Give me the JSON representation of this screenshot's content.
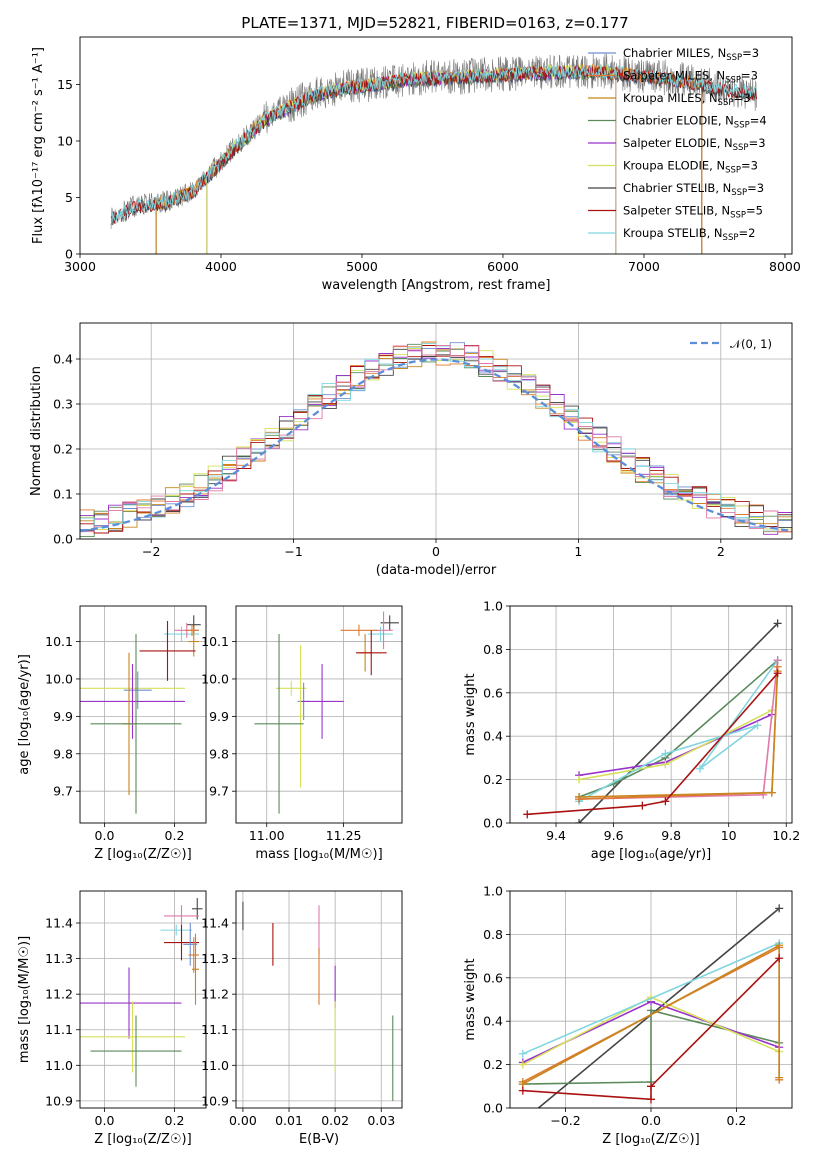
{
  "title": "PLATE=1371, MJD=52821, FIBERID=0163, z=0.177",
  "colors": {
    "chabrier_miles": "#6f8fcf",
    "salpeter_miles": "#e07a2e",
    "kroupa_miles": "#c8861e",
    "chabrier_elodie": "#5a8a5a",
    "salpeter_elodie": "#9933cc",
    "kroupa_elodie": "#d6e05a",
    "chabrier_stelib": "#444444",
    "salpeter_stelib": "#aa1111",
    "kroupa_stelib": "#7fd6e0",
    "salpeter_stelib_pink": "#e07aa8",
    "gaussian": "#5b8fd9"
  },
  "chart_data": [
    {
      "type": "line",
      "id": "spectrum",
      "xlabel": "wavelength [Angstrom, rest frame]",
      "ylabel": "Flux [fλ10⁻¹⁷ erg cm⁻² s⁻¹ A⁻¹]",
      "xlim": [
        3000,
        8050
      ],
      "ylim": [
        0,
        19.2
      ],
      "xticks": [
        3000,
        4000,
        5000,
        6000,
        7000,
        8000
      ],
      "yticks": [
        0,
        5,
        10,
        15
      ],
      "data_range": [
        3220,
        7800
      ],
      "continuum": {
        "x": [
          3220,
          3400,
          3600,
          3800,
          3950,
          4100,
          4300,
          4500,
          4700,
          4900,
          5100,
          5300,
          5500,
          5700,
          5900,
          6100,
          6300,
          6500,
          6700,
          6900,
          7100,
          7300,
          7500,
          7800
        ],
        "y": [
          3.2,
          4.3,
          4.6,
          5.6,
          7.5,
          9.5,
          11.8,
          13.2,
          14.3,
          14.8,
          15.1,
          15.5,
          15.6,
          15.7,
          15.9,
          16.0,
          16.1,
          16.2,
          16.2,
          15.9,
          15.7,
          15.3,
          14.8,
          14.2
        ]
      },
      "legend": [
        {
          "label": "Chabrier MILES, N",
          "n": "3",
          "color": "chabrier_miles"
        },
        {
          "label": "Salpeter MILES, N",
          "n": "3",
          "color": "salpeter_miles"
        },
        {
          "label": "Kroupa MILES, N",
          "n": "3",
          "color": "kroupa_miles"
        },
        {
          "label": "Chabrier ELODIE, N",
          "n": "4",
          "color": "chabrier_elodie"
        },
        {
          "label": "Salpeter ELODIE, N",
          "n": "3",
          "color": "salpeter_elodie"
        },
        {
          "label": "Kroupa ELODIE, N",
          "n": "3",
          "color": "kroupa_elodie"
        },
        {
          "label": "Chabrier STELIB, N",
          "n": "3",
          "color": "chabrier_stelib"
        },
        {
          "label": "Salpeter STELIB, N",
          "n": "5",
          "color": "salpeter_stelib"
        },
        {
          "label": "Kroupa STELIB, N",
          "n": "2",
          "color": "kroupa_stelib"
        }
      ],
      "legend_sub": "SSP",
      "legend_position": "right"
    },
    {
      "type": "histogram",
      "id": "residuals",
      "xlabel": "(data-model)/error",
      "ylabel": "Normed distribution",
      "xlim": [
        -2.5,
        2.5
      ],
      "ylim": [
        0,
        0.48
      ],
      "xticks": [
        -2,
        -1,
        0,
        1,
        2
      ],
      "yticks": [
        0.0,
        0.1,
        0.2,
        0.3,
        0.4
      ],
      "grid": true,
      "bin_width": 0.1,
      "gaussian_label": "𝒩(0, 1)",
      "legend_position": "top-right"
    },
    {
      "type": "scatter",
      "id": "age_vs_Z",
      "xlabel": "Z [log₁₀(Z/Z☉)]",
      "ylabel": "age  [log₁₀(age/yr)]",
      "xlim": [
        -0.07,
        0.29
      ],
      "ylim": [
        9.615,
        10.195
      ],
      "xticks": [
        0.0,
        0.2
      ],
      "yticks": [
        9.7,
        9.8,
        9.9,
        10.0,
        10.1
      ],
      "grid": true,
      "points": [
        {
          "c": "chabrier_stelib",
          "x": 0.255,
          "xe": 0.02,
          "y": 10.145,
          "ye": 0.025
        },
        {
          "c": "kroupa_stelib",
          "x": 0.22,
          "xe": 0.05,
          "y": 10.12,
          "ye": 0.02
        },
        {
          "c": "salpeter_stelib_pink",
          "x": 0.235,
          "xe": 0.035,
          "y": 10.13,
          "ye": 0.02
        },
        {
          "c": "salpeter_miles",
          "x": 0.25,
          "xe": 0.02,
          "y": 10.13,
          "ye": 0.015
        },
        {
          "c": "kroupa_miles",
          "x": 0.255,
          "xe": 0.015,
          "y": 10.1,
          "ye": 0.04
        },
        {
          "c": "salpeter_stelib",
          "x": 0.18,
          "xe": 0.08,
          "y": 10.075,
          "ye": 0.08
        },
        {
          "c": "kroupa_elodie",
          "x": 0.08,
          "xe": 0.15,
          "y": 9.975,
          "ye": 0.02
        },
        {
          "c": "chabrier_miles",
          "x": 0.095,
          "xe": 0.04,
          "y": 9.97,
          "ye": 0.05
        },
        {
          "c": "salpeter_elodie",
          "x": 0.08,
          "xe": 0.15,
          "y": 9.94,
          "ye": 0.1
        },
        {
          "c": "kroupa_miles",
          "x": 0.07,
          "xe": 0.02,
          "y": 9.88,
          "ye": 0.19
        },
        {
          "c": "chabrier_elodie",
          "x": 0.09,
          "xe": 0.13,
          "y": 9.88,
          "ye": 0.24
        }
      ]
    },
    {
      "type": "scatter",
      "id": "age_vs_mass",
      "xlabel": "mass [log₁₀(M/M☉)]",
      "ylabel": "",
      "xlim": [
        10.9,
        11.44
      ],
      "ylim": [
        9.615,
        10.195
      ],
      "xticks": [
        11.0,
        11.25
      ],
      "yticks": [
        9.7,
        9.8,
        9.9,
        10.0,
        10.1
      ],
      "grid": true,
      "points": [
        {
          "c": "chabrier_stelib",
          "x": 11.4,
          "xe": 0.03,
          "y": 10.15,
          "ye": 0.02
        },
        {
          "c": "kroupa_stelib",
          "x": 11.37,
          "xe": 0.04,
          "y": 10.12,
          "ye": 0.02
        },
        {
          "c": "salpeter_stelib_pink",
          "x": 11.38,
          "xe": 0.03,
          "y": 10.13,
          "ye": 0.05
        },
        {
          "c": "salpeter_miles",
          "x": 11.3,
          "xe": 0.06,
          "y": 10.13,
          "ye": 0.015
        },
        {
          "c": "kroupa_miles",
          "x": 11.32,
          "xe": 0.02,
          "y": 10.07,
          "ye": 0.05
        },
        {
          "c": "salpeter_stelib",
          "x": 11.34,
          "xe": 0.05,
          "y": 10.07,
          "ye": 0.06
        },
        {
          "c": "kroupa_elodie",
          "x": 11.08,
          "xe": 0.05,
          "y": 9.975,
          "ye": 0.02
        },
        {
          "c": "chabrier_miles",
          "x": 11.12,
          "xe": 0.02,
          "y": 9.94,
          "ye": 0.05
        },
        {
          "c": "salpeter_elodie",
          "x": 11.18,
          "xe": 0.07,
          "y": 9.94,
          "ye": 0.1
        },
        {
          "c": "kroupa_elodie",
          "x": 11.11,
          "xe": 0.01,
          "y": 9.9,
          "ye": 0.19
        },
        {
          "c": "chabrier_elodie",
          "x": 11.04,
          "xe": 0.08,
          "y": 9.88,
          "ye": 0.24
        }
      ]
    },
    {
      "type": "line",
      "id": "massweight_vs_age",
      "xlabel": "age  [log₁₀(age/yr)]",
      "ylabel": "mass weight",
      "xlim": [
        9.24,
        10.22
      ],
      "ylim": [
        0,
        1.0
      ],
      "xticks": [
        9.4,
        9.6,
        9.8,
        10.0,
        10.2
      ],
      "yticks": [
        0.0,
        0.2,
        0.4,
        0.6,
        0.8,
        1.0
      ],
      "grid": true,
      "series": [
        {
          "c": "chabrier_stelib",
          "x": [
            9.48,
            10.17
          ],
          "y": [
            0.0,
            0.92
          ]
        },
        {
          "c": "chabrier_elodie",
          "x": [
            9.48,
            9.6,
            9.78,
            10.17
          ],
          "y": [
            0.12,
            0.18,
            0.3,
            0.75
          ]
        },
        {
          "c": "salpeter_elodie",
          "x": [
            9.48,
            9.78,
            10.15
          ],
          "y": [
            0.22,
            0.28,
            0.5
          ]
        },
        {
          "c": "kroupa_elodie",
          "x": [
            9.48,
            9.78,
            10.15
          ],
          "y": [
            0.2,
            0.27,
            0.52
          ]
        },
        {
          "c": "kroupa_stelib",
          "x": [
            9.48,
            9.78,
            10.1,
            9.9,
            10.17
          ],
          "y": [
            0.1,
            0.32,
            0.45,
            0.25,
            0.75
          ]
        },
        {
          "c": "salpeter_stelib_pink",
          "x": [
            9.48,
            10.12,
            10.17
          ],
          "y": [
            0.11,
            0.13,
            0.75
          ]
        },
        {
          "c": "salpeter_miles",
          "x": [
            9.48,
            10.15,
            10.17
          ],
          "y": [
            0.11,
            0.14,
            0.72
          ]
        },
        {
          "c": "kroupa_miles",
          "x": [
            9.48,
            10.15,
            10.17
          ],
          "y": [
            0.12,
            0.14,
            0.7
          ]
        },
        {
          "c": "salpeter_stelib",
          "x": [
            9.3,
            9.7,
            9.78,
            10.17
          ],
          "y": [
            0.04,
            0.08,
            0.1,
            0.69
          ]
        }
      ]
    },
    {
      "type": "scatter",
      "id": "mass_vs_Z",
      "xlabel": "Z [log₁₀(Z/Z☉)]",
      "ylabel": "mass [log₁₀(M/M☉)]",
      "xlim": [
        -0.07,
        0.29
      ],
      "ylim": [
        10.88,
        11.49
      ],
      "xticks": [
        0.0,
        0.2
      ],
      "yticks": [
        10.9,
        11.0,
        11.1,
        11.2,
        11.3,
        11.4
      ],
      "grid": true,
      "points": [
        {
          "c": "chabrier_stelib",
          "x": 0.265,
          "xe": 0.015,
          "y": 11.44,
          "ye": 0.03
        },
        {
          "c": "salpeter_stelib_pink",
          "x": 0.22,
          "xe": 0.05,
          "y": 11.42,
          "ye": 0.03
        },
        {
          "c": "kroupa_stelib",
          "x": 0.205,
          "xe": 0.045,
          "y": 11.38,
          "ye": 0.015
        },
        {
          "c": "salpeter_stelib",
          "x": 0.22,
          "xe": 0.05,
          "y": 11.345,
          "ye": 0.05
        },
        {
          "c": "chabrier_miles",
          "x": 0.245,
          "xe": 0.02,
          "y": 11.34,
          "ye": 0.06
        },
        {
          "c": "salpeter_miles",
          "x": 0.255,
          "xe": 0.015,
          "y": 11.31,
          "ye": 0.05
        },
        {
          "c": "kroupa_miles",
          "x": 0.26,
          "xe": 0.01,
          "y": 11.27,
          "ye": 0.1
        },
        {
          "c": "salpeter_elodie",
          "x": 0.07,
          "xe": 0.15,
          "y": 11.175,
          "ye": 0.1
        },
        {
          "c": "kroupa_elodie",
          "x": 0.08,
          "xe": 0.15,
          "y": 11.08,
          "ye": 0.1
        },
        {
          "c": "chabrier_elodie",
          "x": 0.09,
          "xe": 0.13,
          "y": 11.04,
          "ye": 0.1
        }
      ]
    },
    {
      "type": "scatter",
      "id": "mass_vs_EBV",
      "xlabel": "E(B-V)",
      "ylabel": "",
      "xlim": [
        -0.0015,
        0.0345
      ],
      "ylim": [
        10.88,
        11.49
      ],
      "xticks": [
        0.0,
        0.01,
        0.02,
        0.03
      ],
      "yticks": [
        10.9,
        11.0,
        11.1,
        11.2,
        11.3,
        11.4
      ],
      "grid": true,
      "points": [
        {
          "c": "chabrier_stelib",
          "x": 0.0,
          "xe": 0,
          "y": 11.42,
          "ye": 0.04
        },
        {
          "c": "salpeter_stelib",
          "x": 0.0065,
          "xe": 0,
          "y": 11.34,
          "ye": 0.06
        },
        {
          "c": "salpeter_stelib_pink",
          "x": 0.0165,
          "xe": 0,
          "y": 11.38,
          "ye": 0.07
        },
        {
          "c": "salpeter_miles",
          "x": 0.0165,
          "xe": 0,
          "y": 11.25,
          "ye": 0.08
        },
        {
          "c": "salpeter_elodie",
          "x": 0.02,
          "xe": 0,
          "y": 11.22,
          "ye": 0.06
        },
        {
          "c": "kroupa_elodie",
          "x": 0.02,
          "xe": 0,
          "y": 11.08,
          "ye": 0.1
        },
        {
          "c": "chabrier_elodie",
          "x": 0.0325,
          "xe": 0,
          "y": 11.02,
          "ye": 0.12
        }
      ]
    },
    {
      "type": "line",
      "id": "massweight_vs_Z",
      "xlabel": "Z [log₁₀(Z/Z☉)]",
      "ylabel": "mass weight",
      "xlim": [
        -0.33,
        0.33
      ],
      "ylim": [
        0,
        1.0
      ],
      "xticks": [
        -0.2,
        0.0,
        0.2
      ],
      "yticks": [
        0.0,
        0.2,
        0.4,
        0.6,
        0.8,
        1.0
      ],
      "grid": true,
      "series": [
        {
          "c": "chabrier_stelib",
          "x": [
            -0.3,
            0.3
          ],
          "y": [
            -0.06,
            0.92
          ]
        },
        {
          "c": "chabrier_elodie",
          "x": [
            -0.3,
            0.0,
            0.0,
            0.3
          ],
          "y": [
            0.11,
            0.12,
            0.45,
            0.3
          ]
        },
        {
          "c": "salpeter_elodie",
          "x": [
            -0.3,
            0.0,
            0.3
          ],
          "y": [
            0.21,
            0.49,
            0.28
          ]
        },
        {
          "c": "kroupa_elodie",
          "x": [
            -0.3,
            0.0,
            0.3
          ],
          "y": [
            0.2,
            0.51,
            0.26
          ]
        },
        {
          "c": "kroupa_stelib",
          "x": [
            -0.3,
            0.3
          ],
          "y": [
            0.25,
            0.76
          ]
        },
        {
          "c": "salpeter_miles",
          "x": [
            -0.3,
            0.3,
            0.3
          ],
          "y": [
            0.12,
            0.74,
            0.13
          ]
        },
        {
          "c": "kroupa_miles",
          "x": [
            -0.3,
            0.3,
            0.3
          ],
          "y": [
            0.11,
            0.75,
            0.14
          ]
        },
        {
          "c": "salpeter_stelib",
          "x": [
            -0.3,
            0.0,
            0.0,
            0.3
          ],
          "y": [
            0.08,
            0.04,
            0.1,
            0.69
          ]
        }
      ]
    }
  ]
}
